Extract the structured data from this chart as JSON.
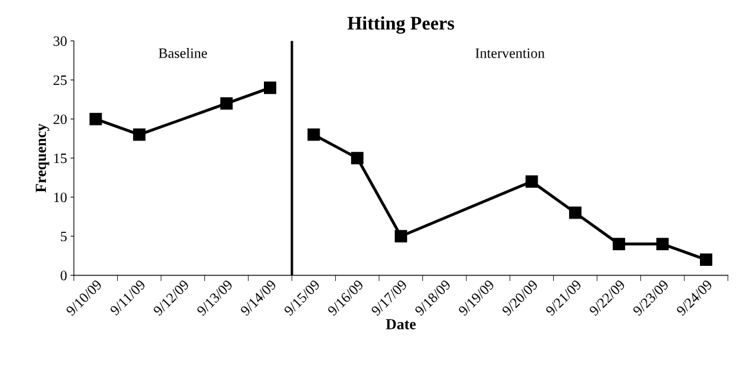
{
  "chart_data": {
    "type": "line",
    "title": "Hitting Peers",
    "xlabel": "Date",
    "ylabel": "Frequency",
    "categories": [
      "9/10/09",
      "9/11/09",
      "9/12/09",
      "9/13/09",
      "9/14/09",
      "9/15/09",
      "9/16/09",
      "9/17/09",
      "9/18/09",
      "9/19/09",
      "9/20/09",
      "9/21/09",
      "9/22/09",
      "9/23/09",
      "9/24/09"
    ],
    "series": [
      {
        "color": "#000000",
        "values": [
          20,
          18,
          null,
          22,
          24,
          null,
          null,
          null,
          null,
          null,
          null,
          null,
          null,
          null,
          null
        ]
      },
      {
        "color": "#000000",
        "values": [
          null,
          null,
          null,
          null,
          null,
          18,
          15,
          5,
          null,
          null,
          12,
          8,
          4,
          4,
          2
        ]
      }
    ],
    "ylim": [
      0,
      30
    ],
    "yticks": [
      0,
      5,
      10,
      15,
      20,
      25,
      30
    ],
    "grid": false,
    "legend": false,
    "marker": "square",
    "line_style": "solid",
    "annotations": [
      "Baseline",
      "Intervention"
    ]
  }
}
